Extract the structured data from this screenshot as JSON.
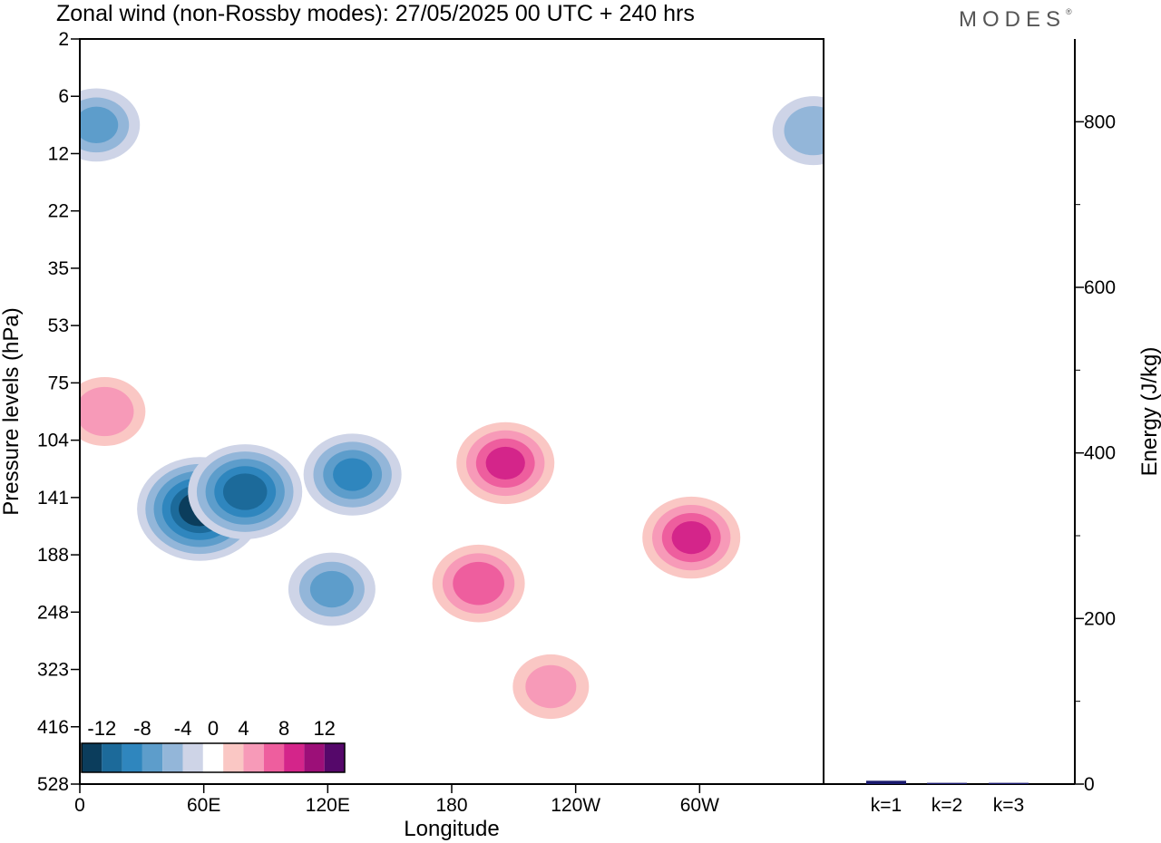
{
  "header": {
    "title": "Zonal wind (non-Rossby modes):  27/05/2025  00 UTC  + 240 hrs",
    "logo_text": "MODES",
    "logo_mark": "®"
  },
  "chart_data": [
    {
      "type": "heatmap",
      "xlabel": "Longitude",
      "ylabel": "Pressure levels (hPa)",
      "x_ticks": [
        "0",
        "60E",
        "120E",
        "180",
        "120W",
        "60W"
      ],
      "y_ticks": [
        "2",
        "6",
        "12",
        "22",
        "35",
        "53",
        "75",
        "104",
        "141",
        "188",
        "248",
        "323",
        "416",
        "528"
      ],
      "colorbar": {
        "labels": [
          "-12",
          "-8",
          "-4",
          "0",
          "4",
          "8",
          "12"
        ],
        "levels": [
          -14,
          -12,
          -10,
          -8,
          -6,
          -4,
          -2,
          2,
          4,
          6,
          8,
          10,
          12,
          14
        ],
        "colors": [
          "#0b3d5c",
          "#1c6a9a",
          "#2f86be",
          "#5d9dcb",
          "#93b6d9",
          "#ced4e7",
          "#ffffff",
          "#fac7c4",
          "#f79ab8",
          "#ee5e9e",
          "#d4258a",
          "#9c0f78",
          "#55086a"
        ]
      },
      "features": [
        {
          "lon": 58,
          "lev_index": 8.2,
          "value": -13
        },
        {
          "lon": 80,
          "lev_index": 7.9,
          "value": -11
        },
        {
          "lon": 132,
          "lev_index": 7.6,
          "value": -8
        },
        {
          "lon": 122,
          "lev_index": 9.6,
          "value": -6
        },
        {
          "lon": 193,
          "lev_index": 9.5,
          "value": 7
        },
        {
          "lon": 206,
          "lev_index": 7.4,
          "value": 8
        },
        {
          "lon": 296,
          "lev_index": 8.7,
          "value": 8
        },
        {
          "lon": 12,
          "lev_index": 6.5,
          "value": 5
        },
        {
          "lon": 228,
          "lev_index": 11.3,
          "value": 4
        },
        {
          "lon": 8,
          "lev_index": 1.5,
          "value": -6
        },
        {
          "lon": 355,
          "lev_index": 1.6,
          "value": -5
        }
      ]
    },
    {
      "type": "bar",
      "categories": [
        "k=1",
        "k=2",
        "k=3"
      ],
      "values": [
        4,
        1.5,
        1.5
      ],
      "ylabel": "Energy (J/kg)",
      "y_ticks": [
        "0",
        "200",
        "400",
        "600",
        "800"
      ],
      "ylim": [
        0,
        900
      ],
      "bar_color": "#1a1a6e"
    }
  ]
}
